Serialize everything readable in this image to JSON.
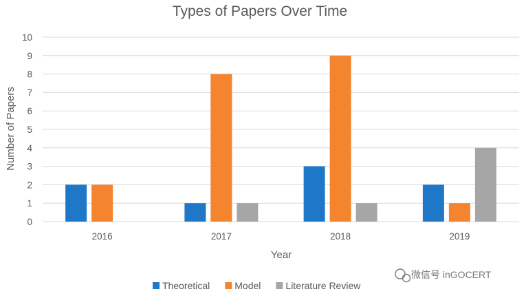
{
  "chart_data": {
    "type": "bar",
    "title": "Types of Papers Over Time",
    "xlabel": "Year",
    "ylabel": "Number of Papers",
    "categories": [
      "2016",
      "2017",
      "2018",
      "2019"
    ],
    "series": [
      {
        "name": "Theoretical",
        "values": [
          2,
          1,
          3,
          2
        ],
        "color": "#1f77c8"
      },
      {
        "name": "Model",
        "values": [
          2,
          8,
          9,
          1
        ],
        "color": "#f4842d"
      },
      {
        "name": "Literature Review",
        "values": [
          0,
          1,
          1,
          4
        ],
        "color": "#a6a6a6"
      }
    ],
    "ylim": [
      0,
      10
    ],
    "yticks": [
      "0",
      "1",
      "2",
      "3",
      "4",
      "5",
      "6",
      "7",
      "8",
      "9",
      "10"
    ],
    "grid": true,
    "legend_position": "bottom"
  },
  "watermark": {
    "text": "微信号 inGOCERT",
    "icon": "wechat-icon"
  },
  "colors": {
    "gridline": "#d9d9d9",
    "text": "#595959"
  }
}
